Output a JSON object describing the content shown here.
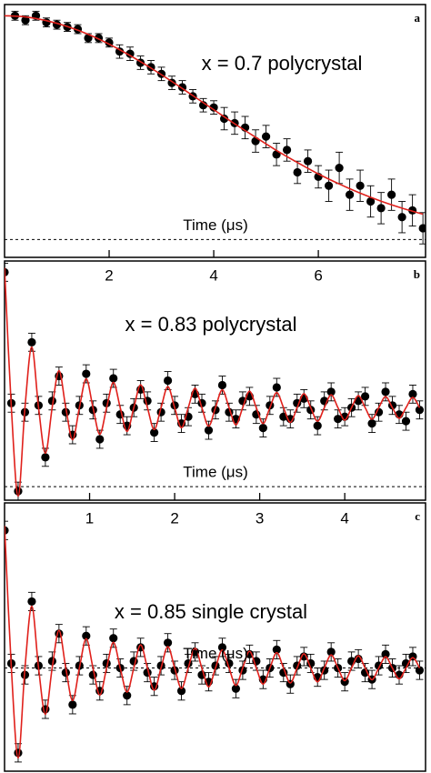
{
  "chart_data": [
    {
      "type": "scatter",
      "panel": "a",
      "annotation": "x = 0.7 polycrystal",
      "x_label": "Time (μs)",
      "xlim": [
        0,
        8.05
      ],
      "ylim": [
        -0.08,
        1.05
      ],
      "xticks": [
        2,
        4,
        6
      ],
      "series": [
        {
          "mark": "point",
          "color": "#000000",
          "x": [
            0.2,
            0.4,
            0.6,
            0.8,
            1.0,
            1.2,
            1.4,
            1.6,
            1.8,
            2.0,
            2.2,
            2.4,
            2.6,
            2.8,
            3.0,
            3.2,
            3.4,
            3.6,
            3.8,
            4.0,
            4.2,
            4.4,
            4.6,
            4.8,
            5.0,
            5.2,
            5.4,
            5.6,
            5.8,
            6.0,
            6.2,
            6.4,
            6.6,
            6.8,
            7.0,
            7.2,
            7.4,
            7.6,
            7.8,
            8.0
          ],
          "values": [
            1.0,
            0.98,
            1.0,
            0.97,
            0.96,
            0.95,
            0.94,
            0.9,
            0.9,
            0.88,
            0.84,
            0.83,
            0.79,
            0.77,
            0.74,
            0.7,
            0.68,
            0.64,
            0.6,
            0.59,
            0.54,
            0.52,
            0.5,
            0.44,
            0.46,
            0.38,
            0.4,
            0.3,
            0.35,
            0.28,
            0.24,
            0.32,
            0.2,
            0.24,
            0.17,
            0.14,
            0.2,
            0.1,
            0.13,
            0.05
          ],
          "errors": [
            0.02,
            0.02,
            0.02,
            0.02,
            0.02,
            0.02,
            0.02,
            0.02,
            0.02,
            0.02,
            0.03,
            0.03,
            0.03,
            0.03,
            0.03,
            0.03,
            0.03,
            0.03,
            0.03,
            0.03,
            0.05,
            0.05,
            0.05,
            0.05,
            0.05,
            0.05,
            0.05,
            0.05,
            0.05,
            0.05,
            0.07,
            0.07,
            0.07,
            0.07,
            0.07,
            0.07,
            0.07,
            0.07,
            0.07,
            0.07
          ]
        },
        {
          "mark": "line",
          "color": "#e0201b",
          "x": [
            0,
            0.4,
            0.8,
            1.2,
            1.6,
            2.0,
            2.4,
            2.8,
            3.2,
            3.6,
            4.0,
            4.4,
            4.8,
            5.2,
            5.6,
            6.0,
            6.4,
            6.8,
            7.2,
            7.6,
            8.0
          ],
          "values": [
            1,
            0.995,
            0.978,
            0.952,
            0.917,
            0.873,
            0.822,
            0.766,
            0.706,
            0.643,
            0.58,
            0.517,
            0.457,
            0.398,
            0.344,
            0.293,
            0.248,
            0.207,
            0.171,
            0.14,
            0.113
          ]
        }
      ]
    },
    {
      "type": "scatter",
      "panel": "b",
      "annotation": "x = 0.83 polycrystal",
      "x_label": "Time (μs)",
      "xlim": [
        0,
        4.95
      ],
      "ylim": [
        -0.06,
        1.0
      ],
      "xticks": [
        1,
        2,
        3,
        4
      ],
      "series": [
        {
          "mark": "point",
          "color": "#000000",
          "error": 0.04,
          "x": [
            0,
            0.08,
            0.16,
            0.24,
            0.32,
            0.4,
            0.48,
            0.56,
            0.64,
            0.72,
            0.8,
            0.88,
            0.96,
            1.04,
            1.12,
            1.2,
            1.28,
            1.36,
            1.44,
            1.52,
            1.6,
            1.68,
            1.76,
            1.84,
            1.92,
            2.0,
            2.08,
            2.16,
            2.24,
            2.32,
            2.4,
            2.48,
            2.56,
            2.64,
            2.72,
            2.8,
            2.88,
            2.96,
            3.04,
            3.12,
            3.2,
            3.28,
            3.36,
            3.44,
            3.52,
            3.6,
            3.68,
            3.76,
            3.84,
            3.92,
            4.0,
            4.08,
            4.16,
            4.24,
            4.32,
            4.4,
            4.48,
            4.56,
            4.64,
            4.72,
            4.8,
            4.88
          ],
          "values": [
            0.95,
            0.37,
            -0.02,
            0.33,
            0.64,
            0.36,
            0.13,
            0.38,
            0.49,
            0.33,
            0.23,
            0.36,
            0.5,
            0.34,
            0.21,
            0.37,
            0.48,
            0.32,
            0.27,
            0.35,
            0.43,
            0.38,
            0.24,
            0.33,
            0.47,
            0.36,
            0.28,
            0.31,
            0.41,
            0.37,
            0.25,
            0.34,
            0.45,
            0.33,
            0.3,
            0.38,
            0.4,
            0.32,
            0.26,
            0.36,
            0.44,
            0.31,
            0.3,
            0.37,
            0.39,
            0.34,
            0.27,
            0.38,
            0.42,
            0.3,
            0.31,
            0.35,
            0.38,
            0.4,
            0.28,
            0.33,
            0.42,
            0.36,
            0.32,
            0.29,
            0.41,
            0.34
          ]
        },
        {
          "mark": "line",
          "color": "#e0201b",
          "x": [
            0,
            0.08,
            0.16,
            0.24,
            0.32,
            0.4,
            0.48,
            0.56,
            0.64,
            0.72,
            0.8,
            0.88,
            0.96,
            1.04,
            1.12,
            1.2,
            1.28,
            1.36,
            1.44,
            1.52,
            1.6,
            1.68,
            1.76,
            1.84,
            1.92,
            2.0,
            2.08,
            2.16,
            2.24,
            2.32,
            2.4,
            2.48,
            2.56,
            2.64,
            2.72,
            2.8,
            2.88,
            2.96,
            3.04,
            3.12,
            3.2,
            3.28,
            3.36,
            3.44,
            3.52,
            3.6,
            3.68,
            3.76,
            3.84,
            3.92,
            4.0,
            4.08,
            4.16,
            4.24,
            4.32,
            4.4,
            4.48,
            4.56,
            4.64,
            4.72,
            4.8,
            4.88
          ],
          "values": [
            0.97,
            0.35,
            -0.042,
            0.35,
            0.619,
            0.35,
            0.148,
            0.35,
            0.514,
            0.35,
            0.208,
            0.35,
            0.478,
            0.35,
            0.232,
            0.35,
            0.462,
            0.35,
            0.245,
            0.35,
            0.451,
            0.35,
            0.253,
            0.35,
            0.443,
            0.35,
            0.261,
            0.35,
            0.436,
            0.35,
            0.268,
            0.35,
            0.429,
            0.35,
            0.274,
            0.35,
            0.423,
            0.35,
            0.28,
            0.35,
            0.417,
            0.35,
            0.285,
            0.35,
            0.412,
            0.35,
            0.29,
            0.35,
            0.407,
            0.35,
            0.295,
            0.35,
            0.403,
            0.35,
            0.299,
            0.35,
            0.399,
            0.35,
            0.303,
            0.35,
            0.395,
            0.35
          ]
        }
      ]
    },
    {
      "type": "scatter",
      "panel": "c",
      "annotation": "x = 0.85 single crystal",
      "x_label": "Time (μs)",
      "xlim": [
        0,
        4.95
      ],
      "ylim": [
        -0.45,
        0.72
      ],
      "series": [
        {
          "mark": "point",
          "color": "#000000",
          "error": 0.04,
          "x": [
            0,
            0.08,
            0.16,
            0.24,
            0.32,
            0.4,
            0.48,
            0.56,
            0.64,
            0.72,
            0.8,
            0.88,
            0.96,
            1.04,
            1.12,
            1.2,
            1.28,
            1.36,
            1.44,
            1.52,
            1.6,
            1.68,
            1.76,
            1.84,
            1.92,
            2.0,
            2.08,
            2.16,
            2.24,
            2.32,
            2.4,
            2.48,
            2.56,
            2.64,
            2.72,
            2.8,
            2.88,
            2.96,
            3.04,
            3.12,
            3.2,
            3.28,
            3.36,
            3.44,
            3.52,
            3.6,
            3.68,
            3.76,
            3.84,
            3.92,
            4.0,
            4.08,
            4.16,
            4.24,
            4.32,
            4.4,
            4.48,
            4.56,
            4.64,
            4.72,
            4.8,
            4.88
          ],
          "values": [
            0.6,
            0.02,
            -0.37,
            -0.03,
            0.29,
            0.01,
            -0.18,
            0.03,
            0.15,
            -0.02,
            -0.16,
            0.01,
            0.14,
            -0.03,
            -0.1,
            0.02,
            0.13,
            0,
            -0.12,
            0.03,
            0.09,
            -0.02,
            -0.08,
            0.01,
            0.11,
            -0.01,
            -0.1,
            0.02,
            0.07,
            -0.03,
            -0.06,
            0.01,
            0.09,
            0.02,
            -0.09,
            -0.01,
            0.06,
            0.03,
            -0.05,
            0,
            0.08,
            -0.02,
            -0.07,
            0.01,
            0.05,
            0.02,
            -0.04,
            -0.01,
            0.07,
            0,
            -0.06,
            0.03,
            0.04,
            -0.02,
            -0.05,
            0.01,
            0.06,
            0,
            -0.03,
            0.02,
            0.05,
            -0.01
          ]
        },
        {
          "mark": "line",
          "color": "#e0201b",
          "x": [
            0,
            0.08,
            0.16,
            0.24,
            0.32,
            0.4,
            0.48,
            0.56,
            0.64,
            0.72,
            0.8,
            0.88,
            0.96,
            1.04,
            1.12,
            1.2,
            1.28,
            1.36,
            1.44,
            1.52,
            1.6,
            1.68,
            1.76,
            1.84,
            1.92,
            2.0,
            2.08,
            2.16,
            2.24,
            2.32,
            2.4,
            2.48,
            2.56,
            2.64,
            2.72,
            2.8,
            2.88,
            2.96,
            3.04,
            3.12,
            3.2,
            3.28,
            3.36,
            3.44,
            3.52,
            3.6,
            3.68,
            3.76,
            3.84,
            3.92,
            4.0,
            4.08,
            4.16,
            4.24,
            4.32,
            4.4,
            4.48,
            4.56,
            4.64,
            4.72,
            4.8,
            4.88
          ],
          "values": [
            0.62,
            0,
            -0.392,
            0,
            0.269,
            0,
            -0.202,
            0,
            0.164,
            0,
            -0.142,
            0,
            0.128,
            0,
            -0.118,
            0,
            0.112,
            0,
            -0.105,
            0,
            0.101,
            0,
            -0.097,
            0,
            0.093,
            0,
            -0.089,
            0,
            0.086,
            0,
            -0.082,
            0,
            0.079,
            0,
            -0.076,
            0,
            0.073,
            0,
            -0.07,
            0,
            0.067,
            0,
            -0.065,
            0,
            0.062,
            0,
            -0.06,
            0,
            0.057,
            0,
            -0.055,
            0,
            0.053,
            0,
            -0.051,
            0,
            0.049,
            0,
            -0.047,
            0,
            0.045,
            0
          ]
        }
      ]
    }
  ]
}
